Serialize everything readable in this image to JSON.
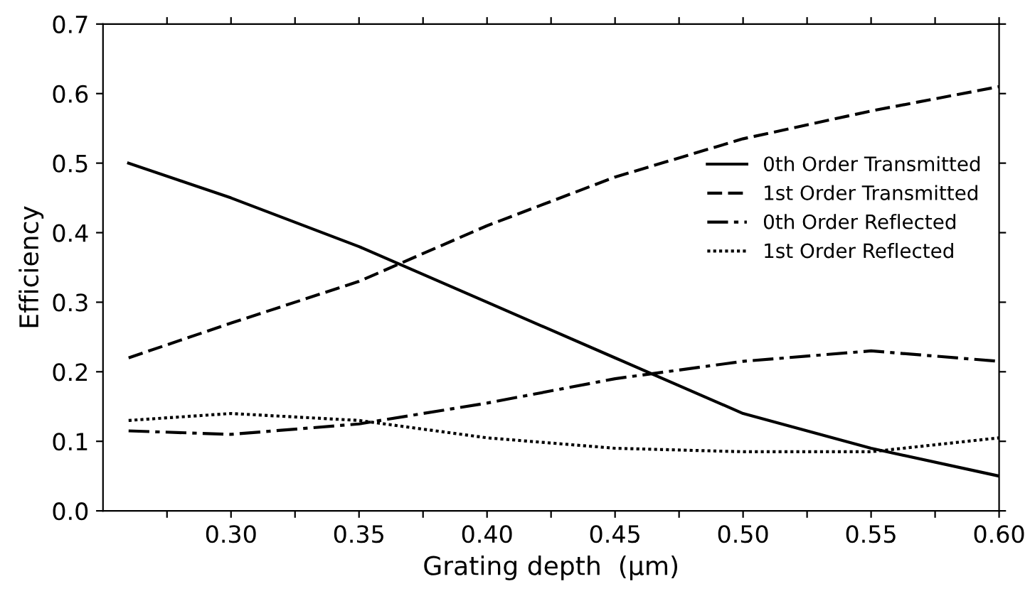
{
  "chart_data": {
    "type": "line",
    "xlabel": "Grating depth  (μm)",
    "ylabel": "Efficiency",
    "xlim": [
      0.25,
      0.6
    ],
    "ylim": [
      0.0,
      0.7
    ],
    "xticks": [
      {
        "value": 0.275,
        "label": null
      },
      {
        "value": 0.3,
        "label": "0.30"
      },
      {
        "value": 0.325,
        "label": null
      },
      {
        "value": 0.35,
        "label": "0.35"
      },
      {
        "value": 0.375,
        "label": null
      },
      {
        "value": 0.4,
        "label": "0.40"
      },
      {
        "value": 0.425,
        "label": null
      },
      {
        "value": 0.45,
        "label": "0.45"
      },
      {
        "value": 0.475,
        "label": null
      },
      {
        "value": 0.5,
        "label": "0.50"
      },
      {
        "value": 0.525,
        "label": null
      },
      {
        "value": 0.55,
        "label": "0.55"
      },
      {
        "value": 0.575,
        "label": null
      },
      {
        "value": 0.6,
        "label": "0.60"
      }
    ],
    "yticks": [
      {
        "value": 0.0,
        "label": "0.0"
      },
      0.1,
      0.2,
      0.3,
      0.4,
      0.5,
      0.6,
      0.7
    ],
    "x": [
      0.26,
      0.3,
      0.35,
      0.4,
      0.45,
      0.5,
      0.55,
      0.6
    ],
    "legend": "right",
    "series": [
      {
        "name": "0th Order Transmitted",
        "color": "#000000",
        "line_style": "solid",
        "values": [
          0.5,
          0.45,
          0.38,
          0.3,
          0.22,
          0.14,
          0.09,
          0.05
        ]
      },
      {
        "name": "1st Order Transmitted",
        "color": "#000000",
        "line_style": "dashed",
        "values": [
          0.22,
          0.27,
          0.33,
          0.41,
          0.48,
          0.535,
          0.575,
          0.61
        ]
      },
      {
        "name": "0th Order Reflected",
        "color": "#000000",
        "line_style": "dashdot",
        "values": [
          0.115,
          0.11,
          0.125,
          0.155,
          0.19,
          0.215,
          0.23,
          0.215
        ]
      },
      {
        "name": "1st Order Reflected",
        "color": "#000000",
        "line_style": "dotted",
        "values": [
          0.13,
          0.14,
          0.13,
          0.105,
          0.09,
          0.085,
          0.085,
          0.105
        ]
      }
    ]
  }
}
